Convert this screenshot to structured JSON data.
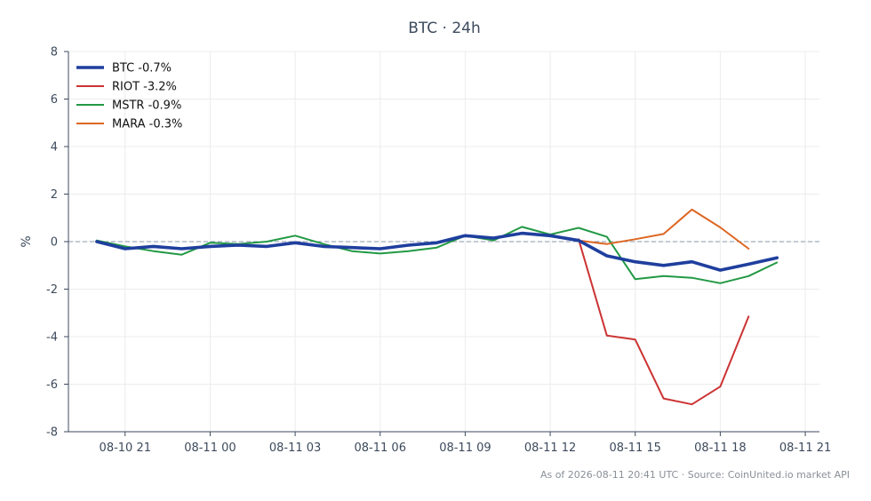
{
  "chart_data": {
    "type": "line",
    "title": "BTC · 24h",
    "xlabel": "",
    "ylabel": "%",
    "ylim": [
      -8,
      8
    ],
    "yticks": [
      -8,
      -6,
      -4,
      -2,
      0,
      2,
      4,
      6,
      8
    ],
    "xlim": [
      "08-10 19:00",
      "08-11 21:30"
    ],
    "xticks": [
      "08-10 21",
      "08-11 00",
      "08-11 03",
      "08-11 06",
      "08-11 09",
      "08-11 12",
      "08-11 15",
      "08-11 18",
      "08-11 21"
    ],
    "grid": true,
    "zero_line": true,
    "legend_position": "top-left",
    "footer": "As of 2026-08-11 20:41 UTC · Source: CoinUnited.io market API",
    "series": [
      {
        "name": "BTC -0.7%",
        "color": "#1f3f9e",
        "emphasis": true,
        "x": [
          "08-10 20:00",
          "08-10 21:00",
          "08-10 22:00",
          "08-10 23:00",
          "08-11 00:00",
          "08-11 01:00",
          "08-11 02:00",
          "08-11 03:00",
          "08-11 04:00",
          "08-11 05:00",
          "08-11 06:00",
          "08-11 07:00",
          "08-11 08:00",
          "08-11 09:00",
          "08-11 10:00",
          "08-11 11:00",
          "08-11 12:00",
          "08-11 13:00",
          "08-11 14:00",
          "08-11 15:00",
          "08-11 16:00",
          "08-11 17:00",
          "08-11 18:00",
          "08-11 19:00",
          "08-11 20:00"
        ],
        "values": [
          0.0,
          -0.3,
          -0.2,
          -0.3,
          -0.2,
          -0.15,
          -0.2,
          -0.05,
          -0.2,
          -0.25,
          -0.3,
          -0.15,
          -0.05,
          0.25,
          0.15,
          0.35,
          0.25,
          0.05,
          -0.6,
          -0.85,
          -1.0,
          -0.85,
          -1.2,
          -0.95,
          -0.68
        ]
      },
      {
        "name": "RIOT -3.2%",
        "color": "#cc3333",
        "emphasis": false,
        "x": [
          "08-11 13:00",
          "08-11 14:00",
          "08-11 15:00",
          "08-11 16:00",
          "08-11 17:00",
          "08-11 18:00",
          "08-11 19:00"
        ],
        "values": [
          0.1,
          -3.95,
          -4.12,
          -6.6,
          -6.85,
          -6.1,
          -3.15
        ]
      },
      {
        "name": "MSTR -0.9%",
        "color": "#229944",
        "emphasis": false,
        "x": [
          "08-10 20:00",
          "08-10 21:00",
          "08-10 22:00",
          "08-10 23:00",
          "08-11 00:00",
          "08-11 01:00",
          "08-11 02:00",
          "08-11 03:00",
          "08-11 04:00",
          "08-11 05:00",
          "08-11 06:00",
          "08-11 07:00",
          "08-11 08:00",
          "08-11 09:00",
          "08-11 10:00",
          "08-11 11:00",
          "08-11 12:00",
          "08-11 13:00",
          "08-11 14:00",
          "08-11 15:00",
          "08-11 16:00",
          "08-11 17:00",
          "08-11 18:00",
          "08-11 19:00",
          "08-11 20:00"
        ],
        "values": [
          0.05,
          -0.2,
          -0.4,
          -0.55,
          -0.05,
          -0.1,
          0.0,
          0.25,
          -0.1,
          -0.4,
          -0.5,
          -0.4,
          -0.25,
          0.25,
          0.05,
          0.62,
          0.3,
          0.58,
          0.2,
          -1.58,
          -1.45,
          -1.52,
          -1.75,
          -1.45,
          -0.88
        ]
      },
      {
        "name": "MARA -0.3%",
        "color": "#dd6622",
        "emphasis": false,
        "x": [
          "08-11 13:00",
          "08-11 14:00",
          "08-11 15:00",
          "08-11 16:00",
          "08-11 17:00",
          "08-11 18:00",
          "08-11 19:00"
        ],
        "values": [
          0.05,
          -0.1,
          0.1,
          0.32,
          1.35,
          0.6,
          -0.3
        ]
      }
    ]
  }
}
